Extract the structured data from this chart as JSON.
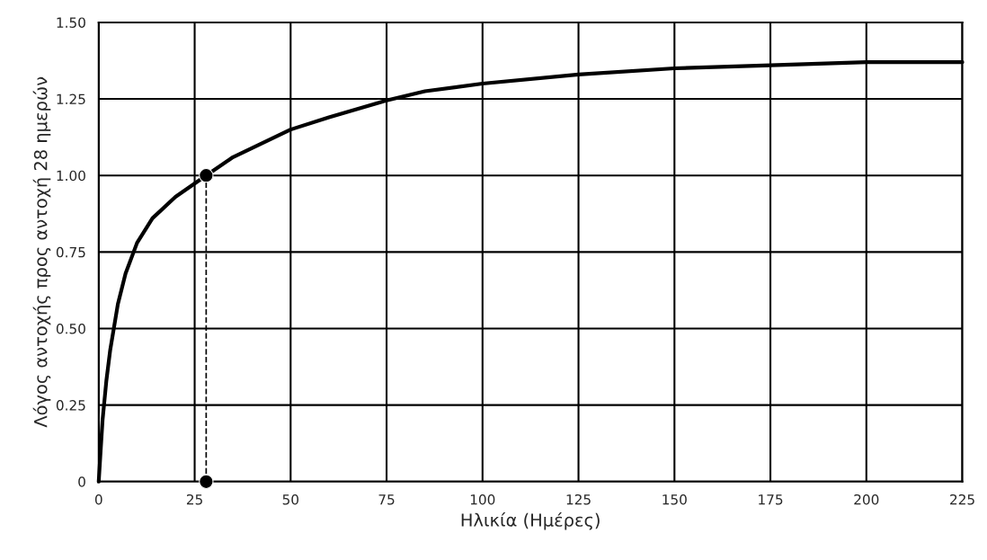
{
  "chart_data": {
    "type": "line",
    "xlabel": "Ηλικία (Ημέρες)",
    "ylabel": "Λόγος αντοχής προς αντοχή 28 ημερών",
    "series": [
      {
        "color": "#000000",
        "x": [
          0,
          1,
          2,
          3,
          5,
          7,
          10,
          14,
          20,
          28,
          35,
          40,
          50,
          60,
          75,
          85,
          100,
          125,
          150,
          175,
          200,
          225
        ],
        "values": [
          0,
          0.2,
          0.33,
          0.43,
          0.58,
          0.68,
          0.78,
          0.86,
          0.93,
          1.0,
          1.06,
          1.09,
          1.15,
          1.19,
          1.245,
          1.275,
          1.3,
          1.33,
          1.35,
          1.36,
          1.37,
          1.37
        ],
        "line_style": "solid",
        "marker": "none"
      },
      {
        "color": "#000000",
        "x": [
          28,
          28
        ],
        "values": [
          0,
          1.0
        ],
        "line_style": "dashed",
        "marker": "circle"
      }
    ],
    "xlim": [
      0,
      225
    ],
    "xticks": [
      0,
      25,
      50,
      75,
      100,
      125,
      150,
      175,
      200,
      225
    ],
    "ylim": [
      0,
      1.5
    ],
    "yticks": [
      0,
      {
        "value": 0.25,
        "label": "0.25"
      },
      {
        "value": 0.5,
        "label": "0.50"
      },
      {
        "value": 0.75,
        "label": "0.75"
      },
      {
        "value": 1.0,
        "label": "1.00"
      },
      {
        "value": 1.25,
        "label": "1.25"
      },
      {
        "value": 1.5,
        "label": "1.50"
      }
    ],
    "grid": true,
    "legend": false
  }
}
